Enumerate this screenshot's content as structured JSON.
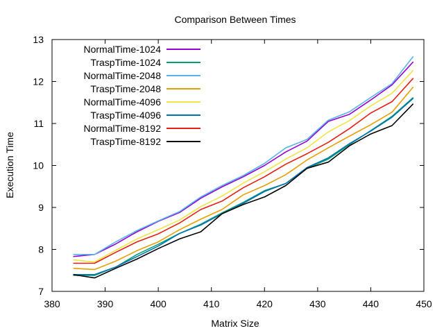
{
  "chart_data": {
    "type": "line",
    "title": "Comparison Between Times",
    "xlabel": "Matrix Size",
    "ylabel": "Execution Time",
    "xlim": [
      380,
      450
    ],
    "ylim": [
      7,
      13
    ],
    "xticks": [
      380,
      390,
      400,
      410,
      420,
      430,
      440,
      450
    ],
    "yticks": [
      7,
      8,
      9,
      10,
      11,
      12,
      13
    ],
    "grid": false,
    "legend_position": "top-left",
    "x": [
      384,
      388,
      392,
      396,
      400,
      404,
      408,
      412,
      416,
      420,
      424,
      428,
      432,
      436,
      440,
      444,
      448
    ],
    "series": [
      {
        "name": "NormalTime-1024",
        "color": "#9400d3",
        "values": [
          7.83,
          7.88,
          8.13,
          8.42,
          8.67,
          8.88,
          9.22,
          9.49,
          9.73,
          10.0,
          10.32,
          10.58,
          11.05,
          11.22,
          11.56,
          11.92,
          12.47
        ]
      },
      {
        "name": "TraspTime-1024",
        "color": "#009e73",
        "values": [
          7.38,
          7.38,
          7.58,
          7.88,
          8.12,
          8.38,
          8.6,
          8.87,
          9.12,
          9.4,
          9.57,
          9.93,
          10.15,
          10.5,
          10.83,
          11.17,
          11.62
        ]
      },
      {
        "name": "NormalTime-2048",
        "color": "#56b4e9",
        "values": [
          7.88,
          7.88,
          8.18,
          8.45,
          8.68,
          8.9,
          9.25,
          9.52,
          9.76,
          10.05,
          10.42,
          10.62,
          11.08,
          11.28,
          11.62,
          11.95,
          12.6
        ]
      },
      {
        "name": "TraspTime-2048",
        "color": "#e69f00",
        "values": [
          7.55,
          7.52,
          7.72,
          7.97,
          8.18,
          8.47,
          8.72,
          8.95,
          9.3,
          9.52,
          9.78,
          10.13,
          10.42,
          10.7,
          10.97,
          11.27,
          11.87
        ]
      },
      {
        "name": "NormalTime-4096",
        "color": "#f0e442",
        "values": [
          7.75,
          7.7,
          7.98,
          8.25,
          8.47,
          8.7,
          9.02,
          9.27,
          9.58,
          9.85,
          10.15,
          10.42,
          10.8,
          11.07,
          11.42,
          11.72,
          12.27
        ]
      },
      {
        "name": "TraspTime-4096",
        "color": "#0072b2",
        "values": [
          7.4,
          7.4,
          7.58,
          7.83,
          8.08,
          8.38,
          8.58,
          8.85,
          9.1,
          9.38,
          9.57,
          9.95,
          10.18,
          10.52,
          10.82,
          11.15,
          11.6
        ]
      },
      {
        "name": "NormalTime-8192",
        "color": "#e51e10",
        "values": [
          7.67,
          7.67,
          7.93,
          8.18,
          8.37,
          8.63,
          8.95,
          9.15,
          9.47,
          9.73,
          10.03,
          10.28,
          10.55,
          10.88,
          11.25,
          11.52,
          12.08
        ]
      },
      {
        "name": "TraspTime-8192",
        "color": "#000000",
        "values": [
          7.4,
          7.32,
          7.55,
          7.77,
          8.02,
          8.25,
          8.42,
          8.85,
          9.07,
          9.25,
          9.52,
          9.93,
          10.08,
          10.47,
          10.75,
          10.95,
          11.47
        ]
      }
    ]
  }
}
